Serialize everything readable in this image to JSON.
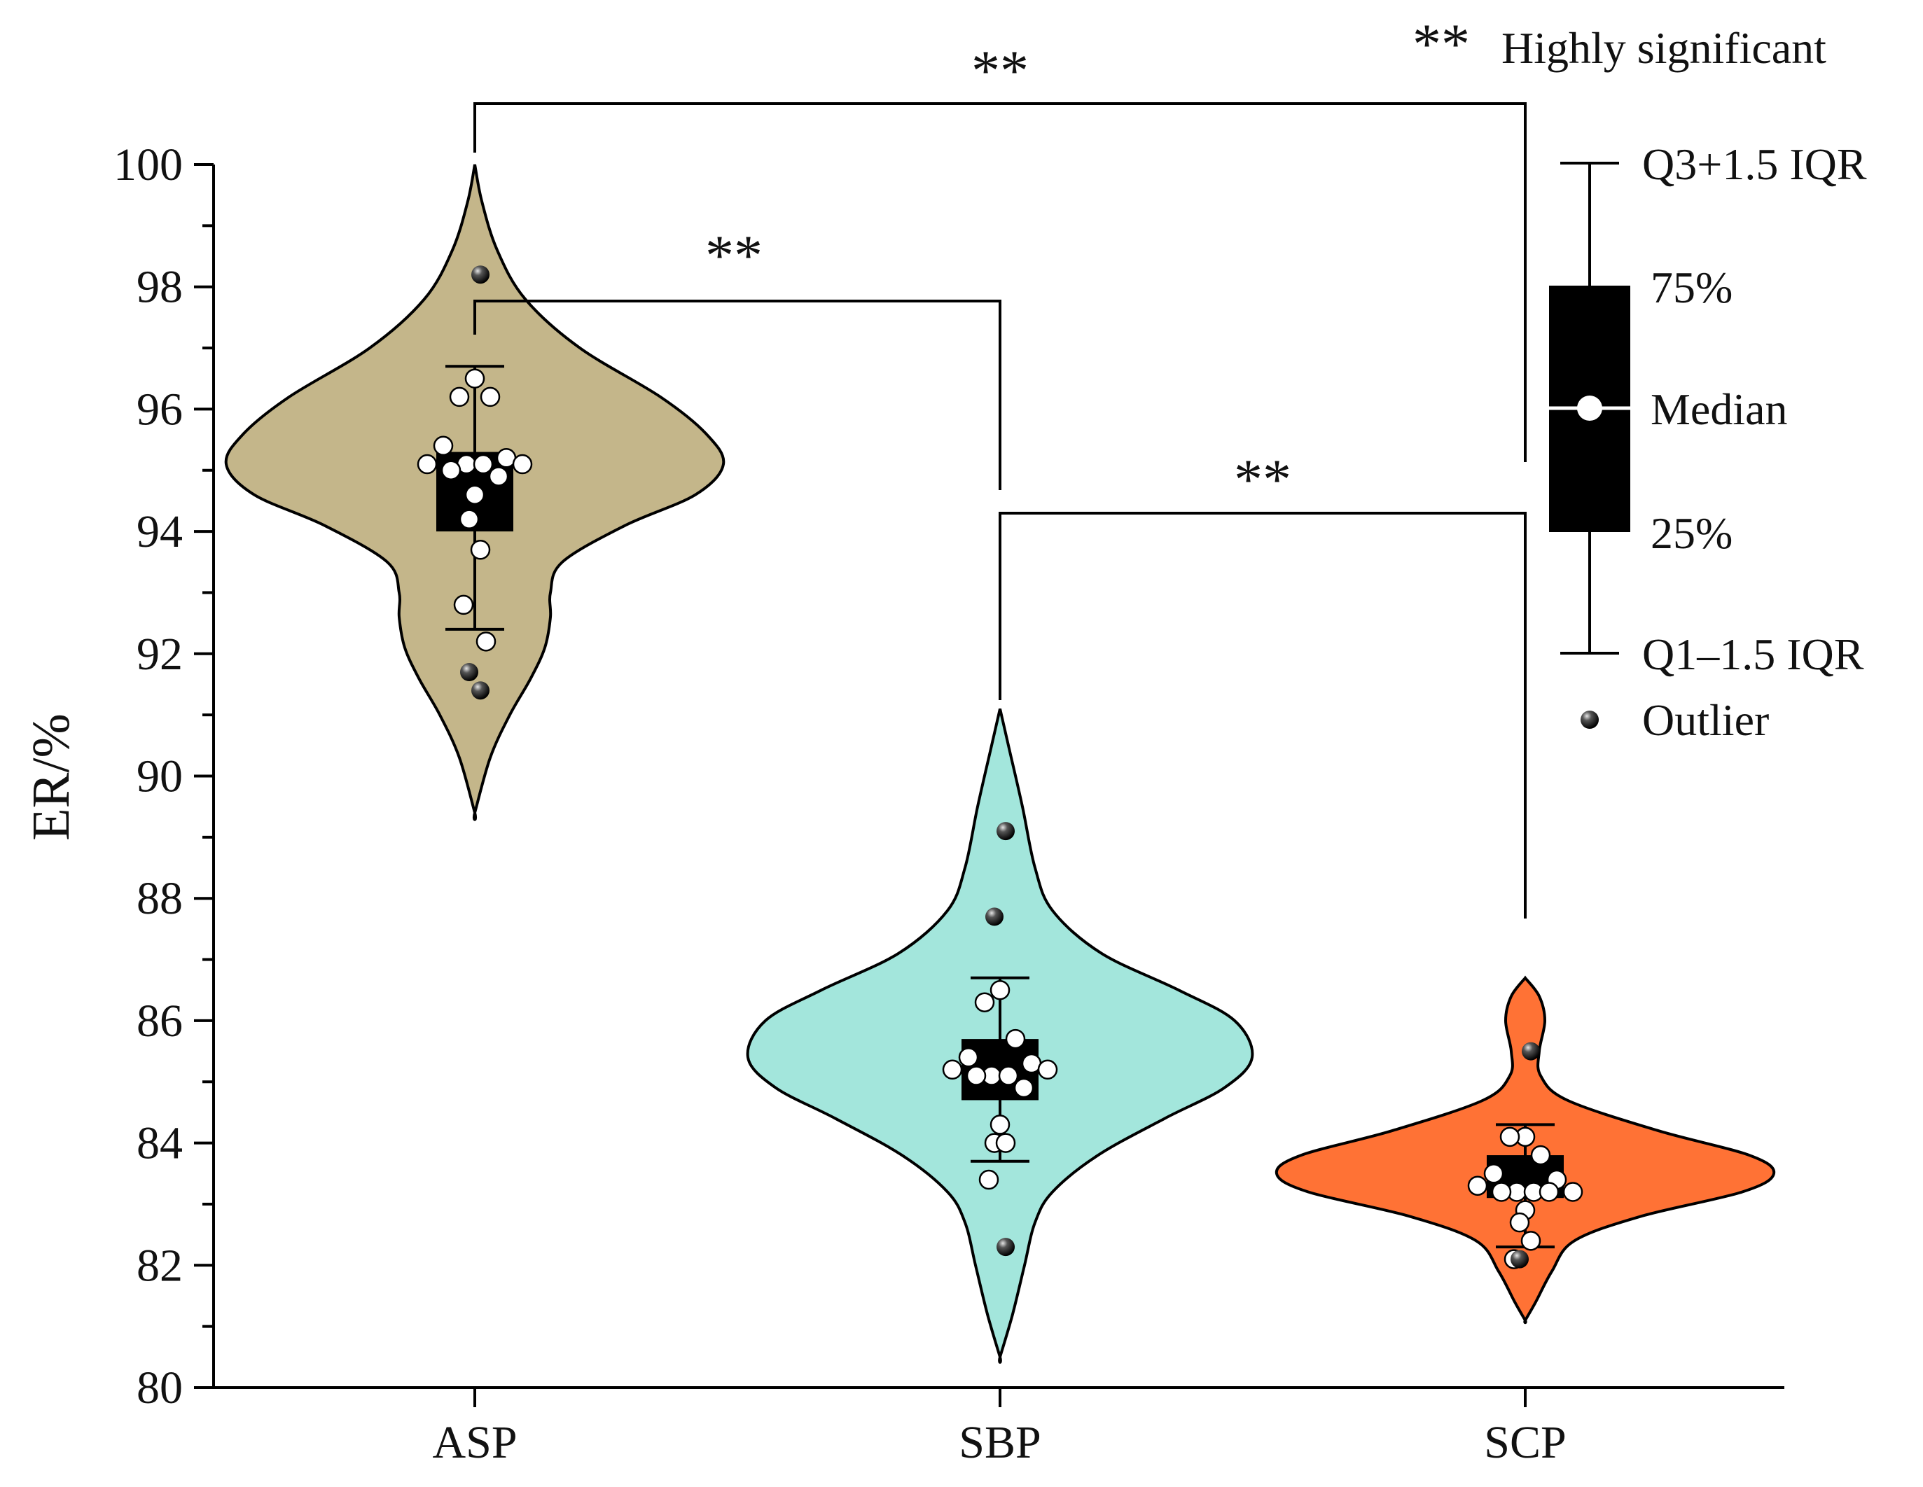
{
  "chart_data": {
    "type": "violin",
    "ylabel": "ER/%",
    "xlabel": "",
    "ylim": [
      80,
      100
    ],
    "yticks": [
      80,
      82,
      84,
      86,
      88,
      90,
      92,
      94,
      96,
      98,
      100
    ],
    "categories": [
      "ASP",
      "SBP",
      "SCP"
    ],
    "colors": {
      "ASP": "#c4b68a",
      "SBP": "#a3e6dc",
      "SCP": "#ff7235",
      "box": "#000000"
    },
    "groups": [
      {
        "name": "ASP",
        "violin_range": [
          89.4,
          100
        ],
        "density_peak": 95.1,
        "box": {
          "q1": 94.0,
          "median": 95.1,
          "q3": 95.3,
          "whisker_low": 92.4,
          "whisker_high": 96.7
        },
        "points": [
          96.5,
          96.2,
          96.2,
          95.4,
          95.2,
          95.1,
          95.1,
          95.1,
          95.1,
          95.0,
          94.9,
          94.6,
          94.2,
          93.7,
          92.8,
          92.2
        ],
        "outliers": [
          98.2,
          91.7,
          91.4
        ]
      },
      {
        "name": "SBP",
        "violin_range": [
          80.5,
          91.1
        ],
        "density_peak": 85.4,
        "box": {
          "q1": 84.7,
          "median": 85.2,
          "q3": 85.7,
          "whisker_low": 83.7,
          "whisker_high": 86.7
        },
        "points": [
          86.5,
          86.3,
          85.7,
          85.4,
          85.3,
          85.2,
          85.2,
          85.1,
          85.1,
          85.1,
          84.9,
          84.3,
          84.0,
          84.0,
          83.4
        ],
        "outliers": [
          89.1,
          87.7,
          82.3
        ]
      },
      {
        "name": "SCP",
        "violin_range": [
          81.1,
          86.7
        ],
        "density_peak": 83.5,
        "box": {
          "q1": 83.1,
          "median": 83.3,
          "q3": 83.8,
          "whisker_low": 82.3,
          "whisker_high": 84.3
        },
        "points": [
          84.1,
          84.1,
          83.8,
          83.5,
          83.4,
          83.3,
          83.2,
          83.2,
          83.2,
          83.2,
          83.2,
          82.9,
          82.7,
          82.4,
          82.1
        ],
        "outliers": [
          85.5,
          82.1
        ]
      }
    ],
    "significance": [
      {
        "from": "ASP",
        "to": "SCP",
        "label": "**"
      },
      {
        "from": "ASP",
        "to": "SBP",
        "label": "**"
      },
      {
        "from": "SBP",
        "to": "SCP",
        "label": "**"
      }
    ],
    "legend": {
      "significance_symbol": "**",
      "significance_text": "Highly significant",
      "upper_whisker": "Q3+1.5 IQR",
      "q3": "75%",
      "median": "Median",
      "q1": "25%",
      "lower_whisker": "Q1–1.5 IQR",
      "outlier": "Outlier"
    }
  }
}
